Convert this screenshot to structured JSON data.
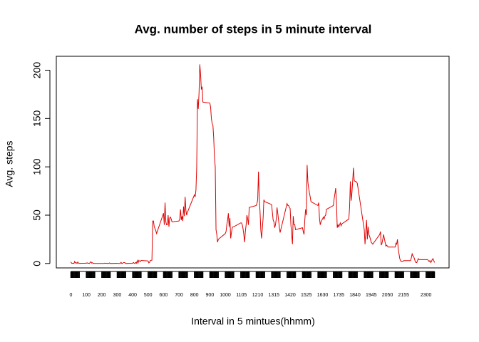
{
  "chart_data": {
    "type": "line",
    "title": "Avg. number of steps in 5 minute interval",
    "x_label": "Interval in 5 mintues(hhmm)",
    "y_label": "Avg. steps",
    "x": [
      0,
      5,
      10,
      15,
      20,
      25,
      30,
      35,
      40,
      45,
      50,
      55,
      100,
      105,
      110,
      115,
      120,
      125,
      130,
      135,
      140,
      145,
      150,
      155,
      200,
      205,
      210,
      215,
      220,
      225,
      230,
      235,
      240,
      245,
      250,
      255,
      300,
      305,
      310,
      315,
      320,
      325,
      330,
      335,
      340,
      345,
      350,
      355,
      400,
      405,
      410,
      415,
      420,
      425,
      430,
      435,
      440,
      445,
      450,
      455,
      500,
      505,
      510,
      515,
      520,
      525,
      530,
      535,
      540,
      545,
      550,
      555,
      600,
      605,
      610,
      615,
      620,
      625,
      630,
      635,
      640,
      645,
      650,
      655,
      700,
      705,
      710,
      715,
      720,
      725,
      730,
      735,
      740,
      745,
      750,
      755,
      800,
      805,
      810,
      815,
      820,
      825,
      830,
      835,
      840,
      845,
      850,
      855,
      900,
      905,
      910,
      915,
      920,
      925,
      930,
      935,
      940,
      945,
      950,
      955,
      1000,
      1005,
      1010,
      1015,
      1020,
      1025,
      1030,
      1035,
      1040,
      1045,
      1050,
      1055,
      1100,
      1105,
      1110,
      1115,
      1120,
      1125,
      1130,
      1135,
      1140,
      1145,
      1150,
      1155,
      1200,
      1205,
      1210,
      1215,
      1220,
      1225,
      1230,
      1235,
      1240,
      1245,
      1250,
      1255,
      1300,
      1305,
      1310,
      1315,
      1320,
      1325,
      1330,
      1335,
      1340,
      1345,
      1350,
      1355,
      1400,
      1405,
      1410,
      1415,
      1420,
      1425,
      1430,
      1435,
      1440,
      1445,
      1450,
      1455,
      1500,
      1505,
      1510,
      1515,
      1520,
      1525,
      1530,
      1535,
      1540,
      1545,
      1550,
      1555,
      1600,
      1605,
      1610,
      1615,
      1620,
      1625,
      1630,
      1635,
      1640,
      1645,
      1650,
      1655,
      1700,
      1705,
      1710,
      1715,
      1720,
      1725,
      1730,
      1735,
      1740,
      1745,
      1750,
      1755,
      1800,
      1805,
      1810,
      1815,
      1820,
      1825,
      1830,
      1835,
      1840,
      1845,
      1850,
      1855,
      1900,
      1905,
      1910,
      1915,
      1920,
      1925,
      1930,
      1935,
      1940,
      1945,
      1950,
      1955,
      2000,
      2005,
      2010,
      2015,
      2020,
      2025,
      2030,
      2035,
      2040,
      2045,
      2050,
      2055,
      2100,
      2105,
      2110,
      2115,
      2120,
      2125,
      2130,
      2135,
      2140,
      2145,
      2150,
      2155,
      2200,
      2205,
      2210,
      2215,
      2220,
      2225,
      2230,
      2235,
      2240,
      2245,
      2250,
      2255,
      2300,
      2305,
      2310,
      2315,
      2320,
      2325,
      2330,
      2335,
      2340,
      2345,
      2350,
      2355
    ],
    "series": [
      {
        "name": "Avg. steps",
        "color": "#e00000",
        "values": [
          1.7,
          0.3,
          0.1,
          0.2,
          0.1,
          2.1,
          0.5,
          0.9,
          0,
          1.5,
          0.3,
          0.1,
          0.3,
          0.7,
          0.2,
          0.3,
          0,
          1.1,
          1.8,
          0.4,
          0.9,
          0,
          0.2,
          0,
          0,
          0,
          0,
          0,
          0.4,
          0.2,
          0.2,
          0.2,
          0,
          0.1,
          0.6,
          0,
          0.2,
          0,
          0,
          0,
          0,
          1.2,
          0,
          0,
          0.9,
          1,
          0.8,
          0,
          0.2,
          1,
          0.4,
          0,
          1.1,
          0.3,
          3,
          0.5,
          3.3,
          2.5,
          2,
          3.2,
          2.6,
          0.6,
          1.4,
          3.1,
          3.3,
          3.4,
          44,
          44,
          38,
          36,
          34,
          31,
          52,
          40,
          63,
          43,
          40,
          40,
          50,
          38,
          47,
          48,
          46,
          43,
          44,
          46,
          56,
          45,
          49,
          44,
          59,
          49,
          69,
          55,
          50,
          53,
          71,
          69,
          76,
          100,
          170,
          160,
          176,
          206,
          196,
          180,
          183,
          167,
          166,
          162,
          150,
          145,
          143,
          130,
          110,
          100,
          35,
          30,
          22,
          25,
          31,
          33,
          40,
          45,
          52,
          38,
          47,
          26,
          32,
          37,
          38,
          38,
          42,
          42,
          40,
          36,
          30,
          22,
          33,
          40,
          50,
          46,
          40,
          58,
          60,
          62,
          66,
          95,
          67,
          54,
          35,
          26,
          36,
          47,
          66,
          64,
          61,
          53,
          45,
          43,
          37,
          40,
          46,
          58,
          52,
          45,
          38,
          32,
          62,
          60,
          60,
          58,
          57,
          40,
          30,
          20,
          49,
          40,
          40,
          35,
          37,
          33,
          30,
          45,
          56,
          50,
          102,
          84,
          78,
          73,
          69,
          64,
          60,
          63,
          47,
          40,
          43,
          45,
          46,
          48,
          46,
          49,
          50,
          56,
          60,
          67,
          72,
          78,
          64,
          37,
          40,
          38,
          40,
          42,
          39,
          41,
          46,
          58,
          85,
          65,
          73,
          85,
          99,
          86,
          85,
          85,
          84,
          83,
          35,
          20,
          33,
          45,
          25,
          38,
          30,
          28,
          25,
          22,
          21,
          20,
          30,
          33,
          19,
          21,
          25,
          30,
          26,
          22,
          18,
          19,
          18,
          17,
          17,
          21,
          20,
          25,
          15,
          10,
          5,
          3,
          2,
          2,
          2,
          3,
          3,
          6,
          10,
          8,
          7,
          5,
          2,
          1,
          1,
          3,
          5,
          4,
          4,
          4,
          4,
          3,
          2,
          3,
          1,
          2,
          4,
          5,
          3,
          1
        ]
      }
    ],
    "xlim": [
      -94.2,
      2449.2
    ],
    "xticks": [
      0,
      100,
      200,
      300,
      400,
      500,
      600,
      700,
      800,
      900,
      1000,
      1105,
      1210,
      1315,
      1420,
      1525,
      1630,
      1735,
      1840,
      1945,
      2050,
      2155,
      2300
    ],
    "ylim": [
      -8.25,
      214.4
    ],
    "yticks": [
      0,
      50,
      100,
      150,
      200
    ]
  }
}
